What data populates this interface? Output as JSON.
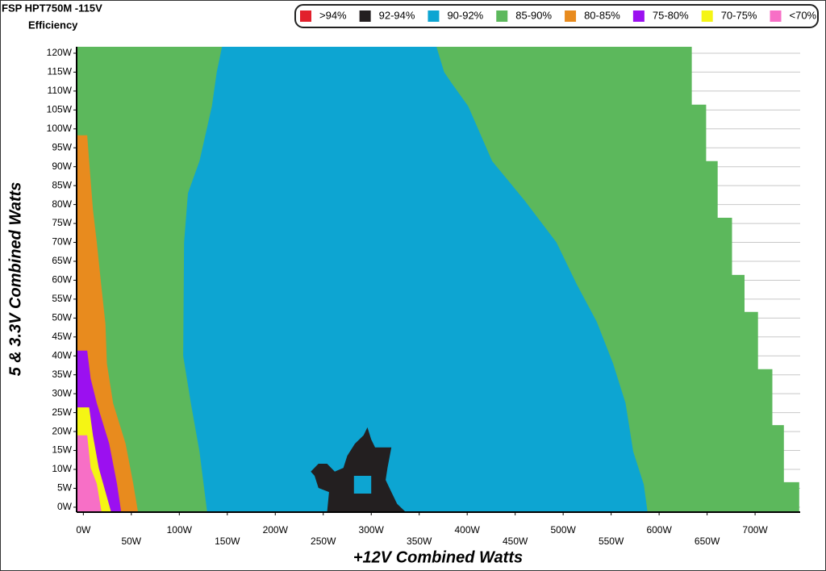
{
  "chart_data": {
    "type": "region",
    "title": "FSP HPT750M -115V",
    "subtitle": "Efficiency",
    "x_label": "+12V Combined Watts",
    "y_label": "5 & 3.3V Combined Watts",
    "xlim": [
      -7,
      747
    ],
    "ylim": [
      -1.3,
      121.7
    ],
    "xticks": [
      {
        "value": 0,
        "label": "0W"
      },
      {
        "value": 50,
        "label": "50W"
      },
      {
        "value": 100,
        "label": "100W"
      },
      {
        "value": 150,
        "label": "150W"
      },
      {
        "value": 200,
        "label": "200W"
      },
      {
        "value": 250,
        "label": "250W"
      },
      {
        "value": 300,
        "label": "300W"
      },
      {
        "value": 350,
        "label": "350W"
      },
      {
        "value": 400,
        "label": "400W"
      },
      {
        "value": 450,
        "label": "450W"
      },
      {
        "value": 500,
        "label": "500W"
      },
      {
        "value": 550,
        "label": "550W"
      },
      {
        "value": 600,
        "label": "600W"
      },
      {
        "value": 650,
        "label": "650W"
      },
      {
        "value": 700,
        "label": "700W"
      }
    ],
    "yticks": [
      {
        "value": 0,
        "label": "0W"
      },
      {
        "value": 5,
        "label": "5W"
      },
      {
        "value": 10,
        "label": "10W"
      },
      {
        "value": 15,
        "label": "15W"
      },
      {
        "value": 20,
        "label": "20W"
      },
      {
        "value": 25,
        "label": "25W"
      },
      {
        "value": 30,
        "label": "30W"
      },
      {
        "value": 35,
        "label": "35W"
      },
      {
        "value": 40,
        "label": "40W"
      },
      {
        "value": 45,
        "label": "45W"
      },
      {
        "value": 50,
        "label": "50W"
      },
      {
        "value": 55,
        "label": "55W"
      },
      {
        "value": 60,
        "label": "60W"
      },
      {
        "value": 65,
        "label": "65W"
      },
      {
        "value": 70,
        "label": "70W"
      },
      {
        "value": 75,
        "label": "75W"
      },
      {
        "value": 80,
        "label": "80W"
      },
      {
        "value": 85,
        "label": "85W"
      },
      {
        "value": 90,
        "label": "90W"
      },
      {
        "value": 95,
        "label": "95W"
      },
      {
        "value": 100,
        "label": "100W"
      },
      {
        "value": 105,
        "label": "105W"
      },
      {
        "value": 110,
        "label": "110W"
      },
      {
        "value": 115,
        "label": "115W"
      },
      {
        "value": 120,
        "label": "120W"
      }
    ],
    "grid": true,
    "series": [
      {
        "name": ">94%",
        "color": "#e2202c",
        "polygons": []
      },
      {
        "name": "92-94%",
        "color": "#231f20",
        "polygons": [
          {
            "x": [
              254,
              256,
              245,
              241,
              237,
              245,
              254,
              262,
              271,
              275,
              283,
              292,
              296,
              300,
              304,
              321,
              317,
              315,
              321,
              327,
              336
            ],
            "y": [
              -1.3,
              4,
              5.1,
              8.3,
              9.4,
              11.5,
              11.5,
              9.4,
              10.4,
              13.6,
              16.8,
              19,
              21.1,
              17.9,
              15.8,
              15.8,
              10.4,
              7.2,
              4,
              0.9,
              -1.3
            ]
          },
          {
            "x": [
              282,
              300,
              300,
              282
            ],
            "y": [
              3.6,
              3.6,
              8.3,
              8.3
            ]
          }
        ]
      },
      {
        "name": "90-92%",
        "color": "#0da5d2",
        "polygons": [
          {
            "x": [
              144.5,
              139,
              134,
              121,
              109,
              105,
              104,
              112,
              121,
              129,
              588,
              584,
              573,
              565,
              552,
              535,
              514,
              493,
              460,
              426,
              401,
              384,
              376,
              368
            ],
            "y": [
              121.7,
              115,
              106,
              91.5,
              83,
              70,
              40,
              27.5,
              14.7,
              -1.3,
              -1.3,
              6,
              14.7,
              27.5,
              38,
              49,
              59,
              70,
              81,
              91.5,
              106,
              112,
              115,
              121.7
            ]
          }
        ]
      },
      {
        "name": "85-90%",
        "color": "#5cb85c",
        "polygons": [
          {
            "x": [
              -7,
              634,
              634,
              649,
              649,
              661,
              661,
              676,
              676,
              689,
              689,
              703,
              703,
              718,
              718,
              730,
              730,
              746,
              746,
              -7
            ],
            "y": [
              121.7,
              121.7,
              106.4,
              106.4,
              91.5,
              91.5,
              76.5,
              76.5,
              61.4,
              61.4,
              51.6,
              51.6,
              36.5,
              36.5,
              21.7,
              21.7,
              6.6,
              6.6,
              -1.3,
              -1.3
            ]
          }
        ]
      },
      {
        "name": "80-85%",
        "color": "#e88b1e",
        "polygons": [
          {
            "x": [
              -7,
              4,
              6,
              10,
              14,
              18.5,
              23,
              24.5,
              31,
              44,
              52,
              57,
              -7
            ],
            "y": [
              98.3,
              98.3,
              91.5,
              78.7,
              70,
              59.1,
              48.5,
              38,
              27.5,
              16.8,
              6.2,
              -1.3,
              -1.3
            ]
          }
        ]
      },
      {
        "name": "75-80%",
        "color": "#9b10f0",
        "polygons": [
          {
            "x": [
              -7,
              4,
              7.6,
              14,
              27,
              35,
              39.5,
              -7
            ],
            "y": [
              41.4,
              41.4,
              34,
              27.5,
              16.8,
              6.2,
              -1.3,
              -1.3
            ]
          }
        ]
      },
      {
        "name": "70-75%",
        "color": "#f5f514",
        "polygons": [
          {
            "x": [
              -7,
              6,
              10,
              16,
              29,
              -7
            ],
            "y": [
              26.4,
              26.4,
              19,
              10.4,
              -1.3,
              -1.3
            ]
          }
        ]
      },
      {
        "name": "<70%",
        "color": "#f76fc6",
        "polygons": [
          {
            "x": [
              -7,
              4,
              7.6,
              14,
              19,
              -7
            ],
            "y": [
              19,
              19,
              10.4,
              6.2,
              -1.3,
              -1.3
            ]
          }
        ]
      }
    ]
  }
}
